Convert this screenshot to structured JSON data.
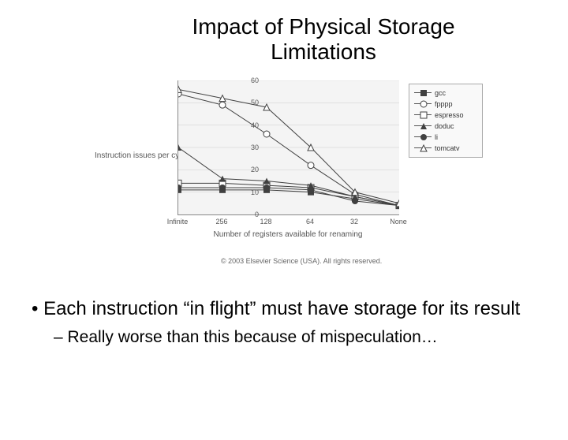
{
  "title_line1": "Impact of Physical Storage",
  "title_line2": "Limitations",
  "chart": {
    "type": "line",
    "ylabel": "Instruction issues per cycle",
    "xlabel": "Number of registers available for renaming",
    "background_color": "#f4f4f4",
    "grid_color": "#cccccc",
    "axis_color": "#888888",
    "text_color": "#555555",
    "ylim": [
      0,
      60
    ],
    "yticks": [
      0,
      10,
      20,
      30,
      40,
      50,
      60
    ],
    "x_categories": [
      "Infinite",
      "256",
      "128",
      "64",
      "32",
      "None"
    ],
    "series": [
      {
        "name": "gcc",
        "marker": "square-filled",
        "color": "#404040",
        "values": [
          11,
          11,
          11,
          10,
          7,
          4
        ]
      },
      {
        "name": "fpppp",
        "marker": "circle-open",
        "color": "#404040",
        "values": [
          54,
          49,
          36,
          22,
          9,
          4
        ]
      },
      {
        "name": "espresso",
        "marker": "square-open",
        "color": "#404040",
        "values": [
          14,
          14,
          13,
          12,
          8,
          4
        ]
      },
      {
        "name": "doduc",
        "marker": "triangle-filled",
        "color": "#404040",
        "values": [
          30,
          16,
          15,
          13,
          8,
          4
        ]
      },
      {
        "name": "li",
        "marker": "circle-filled",
        "color": "#404040",
        "values": [
          12,
          12,
          12,
          11,
          6,
          4
        ]
      },
      {
        "name": "tomcatv",
        "marker": "triangle-open",
        "color": "#404040",
        "values": [
          56,
          52,
          48,
          30,
          10,
          5
        ]
      }
    ],
    "copyright": "© 2003 Elsevier Science (USA). All rights reserved."
  },
  "bullet1": "Each instruction “in flight” must have storage for its result",
  "bullet2": "Really worse than this because of mispeculation…"
}
